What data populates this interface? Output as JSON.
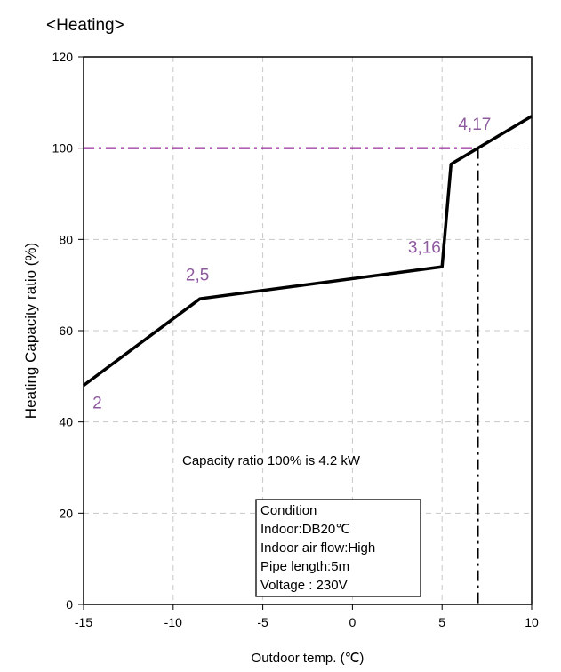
{
  "chart_data": {
    "type": "line",
    "title": "<Heating>",
    "xlabel": "Outdoor temp. (℃)",
    "ylabel": "Heating Capacity ratio (%)",
    "xlim": [
      -15,
      10
    ],
    "ylim": [
      0,
      120
    ],
    "xticks": [
      -15,
      -10,
      -5,
      0,
      5,
      10
    ],
    "yticks": [
      0,
      20,
      40,
      60,
      80,
      100,
      120
    ],
    "grid": true,
    "series": [
      {
        "x": [
          -15,
          -8.5,
          5,
          5.5,
          7,
          10
        ],
        "y": [
          48,
          67,
          74,
          96.5,
          100,
          107
        ]
      }
    ],
    "reference_lines": {
      "horizontal": {
        "y": 100,
        "color": "#800080"
      },
      "vertical": {
        "x": 7,
        "color": "#000000"
      }
    },
    "annotations": [
      {
        "text": "2",
        "x": -14.5,
        "y": 43,
        "color": "#8e5a9e"
      },
      {
        "text": "2,5",
        "x": -9.3,
        "y": 71,
        "color": "#8e5a9e"
      },
      {
        "text": "3,16",
        "x": 3.1,
        "y": 77,
        "color": "#8e5a9e"
      },
      {
        "text": "4,17",
        "x": 5.9,
        "y": 104,
        "color": "#8e5a9e"
      }
    ],
    "note": "Capacity ratio  100% is 4.2 kW",
    "condition_box": [
      "Condition",
      "Indoor:DB20℃",
      "Indoor air flow:High",
      "Pipe length:5m",
      "Voltage : 230V"
    ]
  }
}
